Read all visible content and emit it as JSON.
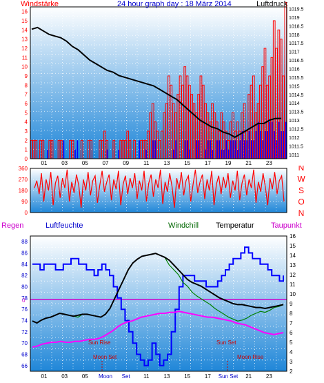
{
  "colors": {
    "wind": "#ff0000",
    "gust_blue": "#0000ff",
    "pressure": "#000000",
    "humidity": "#0000ff",
    "windchill": "#008000",
    "temperature": "#000000",
    "dewpoint": "#ff00ff",
    "rain": "#ff0000",
    "bg_top": "#ffffff",
    "bg_bottom": "#1f86d8",
    "axis_dark": "#000000",
    "magenta_label": "#cc00cc",
    "blue_label": "#0000cc",
    "green_label": "#006600",
    "label_red": "#cc0000"
  },
  "chart_data": [
    {
      "type": "bar",
      "title": "24 hour graph day : 18 März 2014",
      "left_label": "Windstärke",
      "right_label": "Luftdruck",
      "x_ticks": [
        "01",
        "03",
        "05",
        "07",
        "09",
        "11",
        "13",
        "15",
        "17",
        "19",
        "21",
        "23"
      ],
      "y_left_ticks": [
        "0",
        "1",
        "2",
        "3",
        "4",
        "5",
        "6",
        "7",
        "8",
        "9",
        "10",
        "11",
        "12",
        "13",
        "14",
        "15",
        "16"
      ],
      "y_left_range": [
        0,
        16.5
      ],
      "y_right_ticks": [
        "1011",
        "1011.5",
        "1012",
        "1012.5",
        "1013",
        "1013.5",
        "1014",
        "1014.5",
        "1015",
        "1015.5",
        "1016",
        "1016.5",
        "1017",
        "1017.5",
        "1018",
        "1018.5",
        "1019",
        "1019.5"
      ],
      "y_right_range": [
        1010.75,
        1019.6
      ],
      "series": [
        {
          "key": "wind_speed",
          "values": [
            2,
            2,
            2,
            0,
            2,
            2,
            0,
            0,
            2,
            2,
            0,
            0,
            2,
            2,
            0,
            0,
            0,
            2,
            2,
            0,
            0,
            0,
            2,
            0,
            0,
            2,
            2,
            0,
            0,
            0,
            2,
            2,
            3,
            2,
            0,
            0,
            2,
            0,
            0,
            2,
            2,
            2,
            3,
            2,
            0,
            2,
            0,
            0,
            2,
            2,
            2,
            3,
            5,
            6,
            4,
            3,
            2,
            3,
            5,
            6,
            9,
            8,
            6,
            5,
            7,
            9,
            8,
            10,
            9,
            8,
            7,
            6,
            5,
            7,
            9,
            8,
            6,
            5,
            4,
            6,
            5,
            4,
            3,
            5,
            4,
            3,
            2,
            4,
            5,
            3,
            4,
            3,
            5,
            6,
            3,
            7,
            8,
            9,
            5,
            6,
            8,
            10,
            12,
            8,
            9,
            11,
            15,
            12,
            14,
            13,
            9,
            17
          ]
        },
        {
          "key": "wind_low",
          "values": [
            0,
            0,
            0,
            0,
            0,
            0,
            0,
            1,
            0,
            0,
            0,
            0,
            0,
            0,
            2,
            0,
            0,
            0,
            0,
            1,
            2,
            0,
            0,
            0,
            0,
            0,
            0,
            0,
            0,
            0,
            0,
            0,
            0,
            1,
            0,
            0,
            0,
            0,
            1,
            0,
            0,
            0,
            0,
            0,
            0,
            0,
            0,
            2,
            0,
            0,
            1,
            0,
            0,
            2,
            2,
            0,
            0,
            0,
            0,
            0,
            0,
            0,
            1,
            2,
            0,
            0,
            0,
            2,
            2,
            1,
            0,
            0,
            2,
            2,
            0,
            0,
            1,
            2,
            2,
            1,
            0,
            2,
            2,
            1,
            1,
            2,
            1,
            2,
            2,
            2,
            1,
            2,
            3,
            2,
            2,
            3,
            2,
            2,
            3,
            4,
            3,
            2,
            3,
            3,
            4,
            4,
            3,
            2,
            4,
            3,
            3,
            4
          ]
        },
        {
          "key": "air_pressure",
          "values": [
            1018.3,
            1018.4,
            1018.2,
            1018.0,
            1017.9,
            1017.8,
            1017.6,
            1017.3,
            1017.1,
            1016.8,
            1016.5,
            1016.3,
            1016.1,
            1015.9,
            1015.8,
            1015.6,
            1015.5,
            1015.4,
            1015.3,
            1015.2,
            1015.1,
            1015.0,
            1014.8,
            1014.6,
            1014.4,
            1014.2,
            1013.9,
            1013.6,
            1013.3,
            1013.0,
            1012.8,
            1012.6,
            1012.5,
            1012.3,
            1012.2,
            1012.0,
            1012.2,
            1012.4,
            1012.6,
            1012.8,
            1012.8,
            1013.0,
            1013.1,
            1013.1
          ]
        }
      ]
    },
    {
      "type": "line",
      "title": "",
      "right_labels": [
        "N",
        "W",
        "S",
        "O",
        "N"
      ],
      "y_ticks": [
        "0",
        "90",
        "180",
        "270",
        "360"
      ],
      "y_range": [
        0,
        360
      ],
      "series": [
        {
          "key": "wind_direction",
          "values": [
            200,
            260,
            150,
            320,
            90,
            270,
            180,
            330,
            60,
            240,
            300,
            120,
            280,
            200,
            350,
            90,
            250,
            160,
            310,
            220,
            40,
            270,
            180,
            330,
            140,
            260,
            300,
            80,
            220,
            340,
            170,
            250,
            310,
            100,
            270,
            190,
            340,
            60,
            230,
            300,
            150,
            280,
            200,
            320,
            110,
            260,
            180,
            340,
            90,
            240,
            310,
            130,
            270,
            200,
            350,
            70,
            250,
            170,
            320,
            210,
            40,
            280,
            190,
            330,
            140,
            260,
            300,
            90,
            230,
            350,
            160,
            250,
            310,
            110,
            270,
            180,
            340,
            60,
            230,
            300,
            150,
            290,
            200,
            320,
            120,
            260,
            180,
            340,
            100,
            240,
            310,
            140,
            270,
            200,
            350,
            80,
            250,
            170,
            320,
            210,
            60,
            280,
            190,
            330,
            150,
            260,
            300,
            90
          ]
        }
      ]
    },
    {
      "type": "line",
      "title": "",
      "labels": {
        "regen": "Regen",
        "luftfeuchte": "Luftfeuchte",
        "windchill": "Windchill",
        "temperatur": "Temperatur",
        "taupunkt": "Taupunkt"
      },
      "x_ticks": [
        "01",
        "03",
        "05",
        "Moon",
        "Set",
        "11",
        "13",
        "15",
        "17",
        "Sun Set",
        "21",
        "23"
      ],
      "y_left_ticks": [
        "66",
        "68",
        "70",
        "72",
        "74",
        "76",
        "78",
        "80",
        "82",
        "84",
        "86",
        "88"
      ],
      "y_left_range": [
        65,
        89
      ],
      "y_right_ticks": [
        "2",
        "3",
        "4",
        "5",
        "6",
        "7",
        "8",
        "9",
        "10",
        "11",
        "12",
        "13",
        "14",
        "15",
        "16"
      ],
      "y_right_range": [
        2,
        16
      ],
      "rain_mark": "0",
      "annotations": [
        "Sun Rise",
        "Moon Set",
        "Sun Set",
        "Moon Rise"
      ],
      "series": [
        {
          "key": "humidity",
          "values": [
            84,
            84,
            83,
            84,
            84,
            84,
            83,
            83,
            84,
            84,
            85,
            85,
            84,
            84,
            83,
            83,
            82,
            83,
            84,
            83,
            82,
            80,
            78,
            76,
            74,
            72,
            70,
            68,
            67,
            66,
            67,
            70,
            68,
            66,
            67,
            68,
            72,
            76,
            80,
            82,
            82,
            82,
            81,
            81,
            81,
            80,
            80,
            80,
            81,
            82,
            83,
            84,
            85,
            85,
            86,
            87,
            86,
            85,
            85,
            84,
            84,
            83,
            82,
            82,
            81,
            82
          ]
        },
        {
          "key": "temperature",
          "values": [
            7.2,
            7.0,
            7.3,
            7.5,
            7.6,
            7.8,
            8.0,
            7.9,
            7.8,
            7.7,
            7.8,
            7.9,
            7.9,
            7.8,
            7.7,
            7.6,
            7.9,
            8.5,
            9.5,
            10.5,
            11.5,
            12.5,
            13.2,
            13.6,
            13.9,
            14.0,
            14.1,
            14.2,
            14.0,
            13.8,
            13.5,
            13.0,
            12.5,
            12.0,
            11.5,
            11.2,
            11.0,
            10.8,
            10.5,
            10.2,
            9.9,
            9.6,
            9.4,
            9.2,
            9.0,
            8.9,
            8.9,
            8.8,
            8.7,
            8.6,
            8.6,
            8.5,
            8.6,
            8.7,
            8.8,
            8.9
          ]
        },
        {
          "key": "windchill",
          "values": [
            7.2,
            7.0,
            7.3,
            7.5,
            7.6,
            7.8,
            8.0,
            7.9,
            7.8,
            7.7,
            7.6,
            7.9,
            7.9,
            7.8,
            7.7,
            7.6,
            7.9,
            8.5,
            9.5,
            10.5,
            11.5,
            12.5,
            13.2,
            13.6,
            13.9,
            14.0,
            14.1,
            14.2,
            14.0,
            13.8,
            13.0,
            12.5,
            12.0,
            11.2,
            10.8,
            10.2,
            9.8,
            9.5,
            9.2,
            8.9,
            8.5,
            8.2,
            7.9,
            7.6,
            7.4,
            7.2,
            7.3,
            7.5,
            7.8,
            8.0,
            8.2,
            8.1,
            8.3,
            8.6,
            8.7,
            8.9
          ]
        },
        {
          "key": "dewpoint",
          "values": [
            4.5,
            4.6,
            4.8,
            4.9,
            5.0,
            5.0,
            5.1,
            5.0,
            5.0,
            5.1,
            5.1,
            5.2,
            5.3,
            5.3,
            5.4,
            5.6,
            5.9,
            6.2,
            6.6,
            6.9,
            7.1,
            7.2,
            7.4,
            7.6,
            7.7,
            7.8,
            7.9,
            8.0,
            8.0,
            8.1,
            8.1,
            8.2,
            8.1,
            8.0,
            7.9,
            7.8,
            7.7,
            7.6,
            7.6,
            7.5,
            7.4,
            7.3,
            7.2,
            7.0,
            6.9,
            6.8,
            6.6,
            6.4,
            6.2,
            6.0,
            5.9,
            5.8,
            5.9,
            6.0
          ]
        }
      ]
    }
  ]
}
